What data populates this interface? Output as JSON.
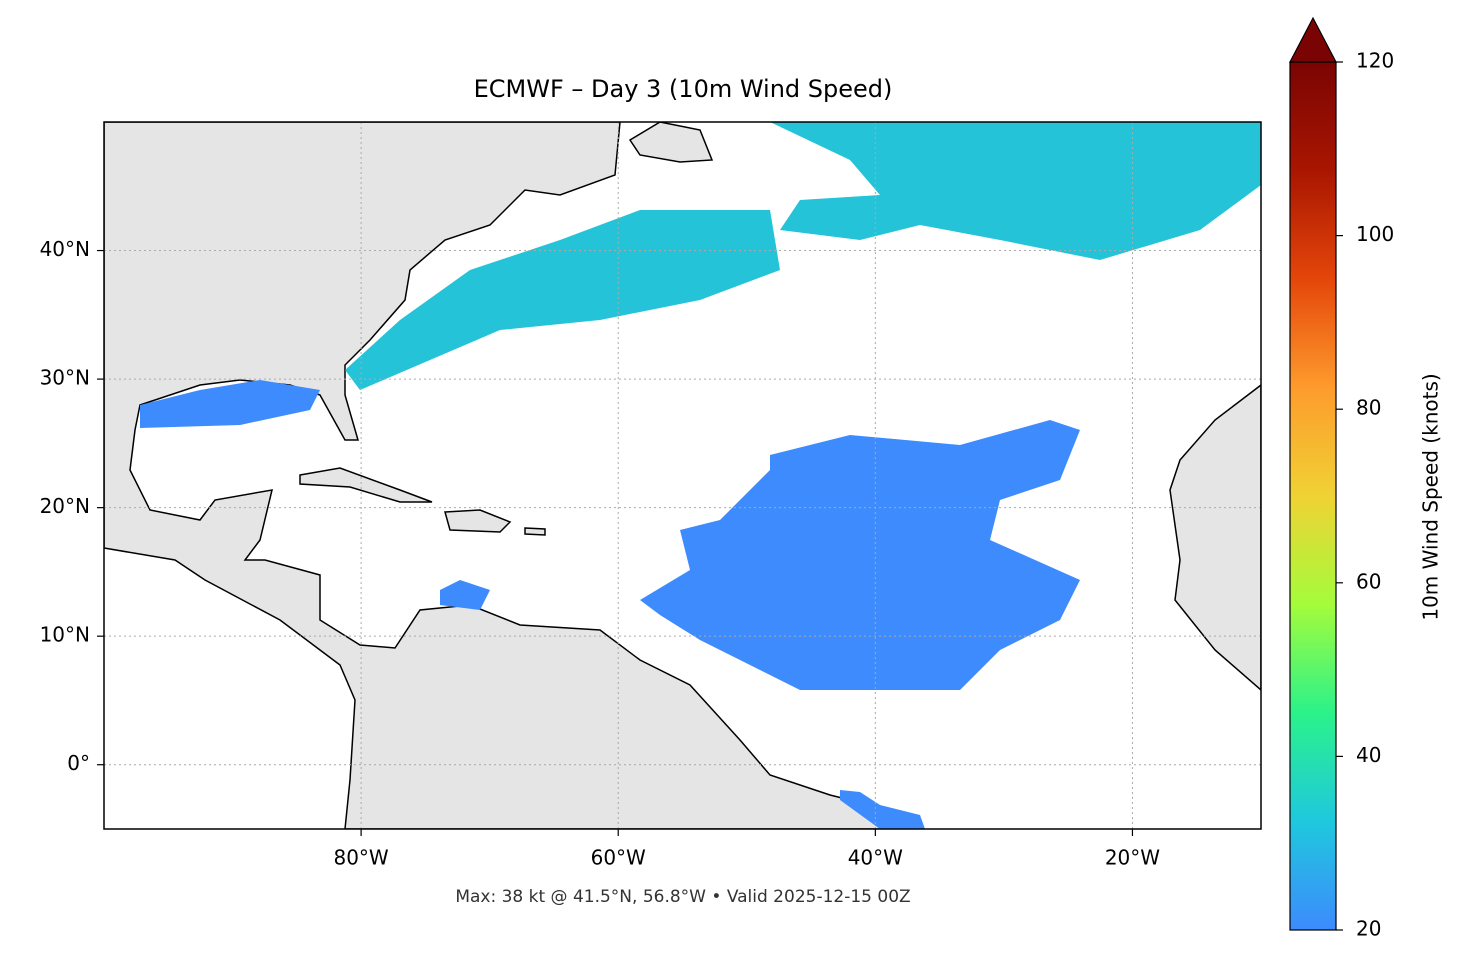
{
  "chart_data": {
    "type": "map",
    "title": "ECMWF – Day 3 (10m Wind Speed)",
    "note": "Max: 38 kt @ 41.5°N, 56.8°W • Valid 2025-12-15 00Z",
    "xlim": [
      -100,
      -10
    ],
    "ylim": [
      -5,
      50
    ],
    "xticks": [
      {
        "value": -80,
        "label": "80°W"
      },
      {
        "value": -60,
        "label": "60°W"
      },
      {
        "value": -40,
        "label": "40°W"
      },
      {
        "value": -20,
        "label": "20°W"
      }
    ],
    "yticks": [
      {
        "value": 0,
        "label": "0°"
      },
      {
        "value": 10,
        "label": "10°N"
      },
      {
        "value": 20,
        "label": "20°N"
      },
      {
        "value": 30,
        "label": "30°N"
      },
      {
        "value": 40,
        "label": "40°N"
      }
    ],
    "grid": true,
    "colorbar": {
      "label": "10m Wind Speed (knots)",
      "lim": [
        20,
        120
      ],
      "ticks": [
        20,
        40,
        60,
        80,
        100,
        120
      ],
      "colors": [
        "#3d8bfd",
        "#1fc8de",
        "#2bf28a",
        "#a4fc3b",
        "#f0d234",
        "#fe9b2d",
        "#e4460a",
        "#a91601",
        "#7a0403"
      ]
    }
  }
}
